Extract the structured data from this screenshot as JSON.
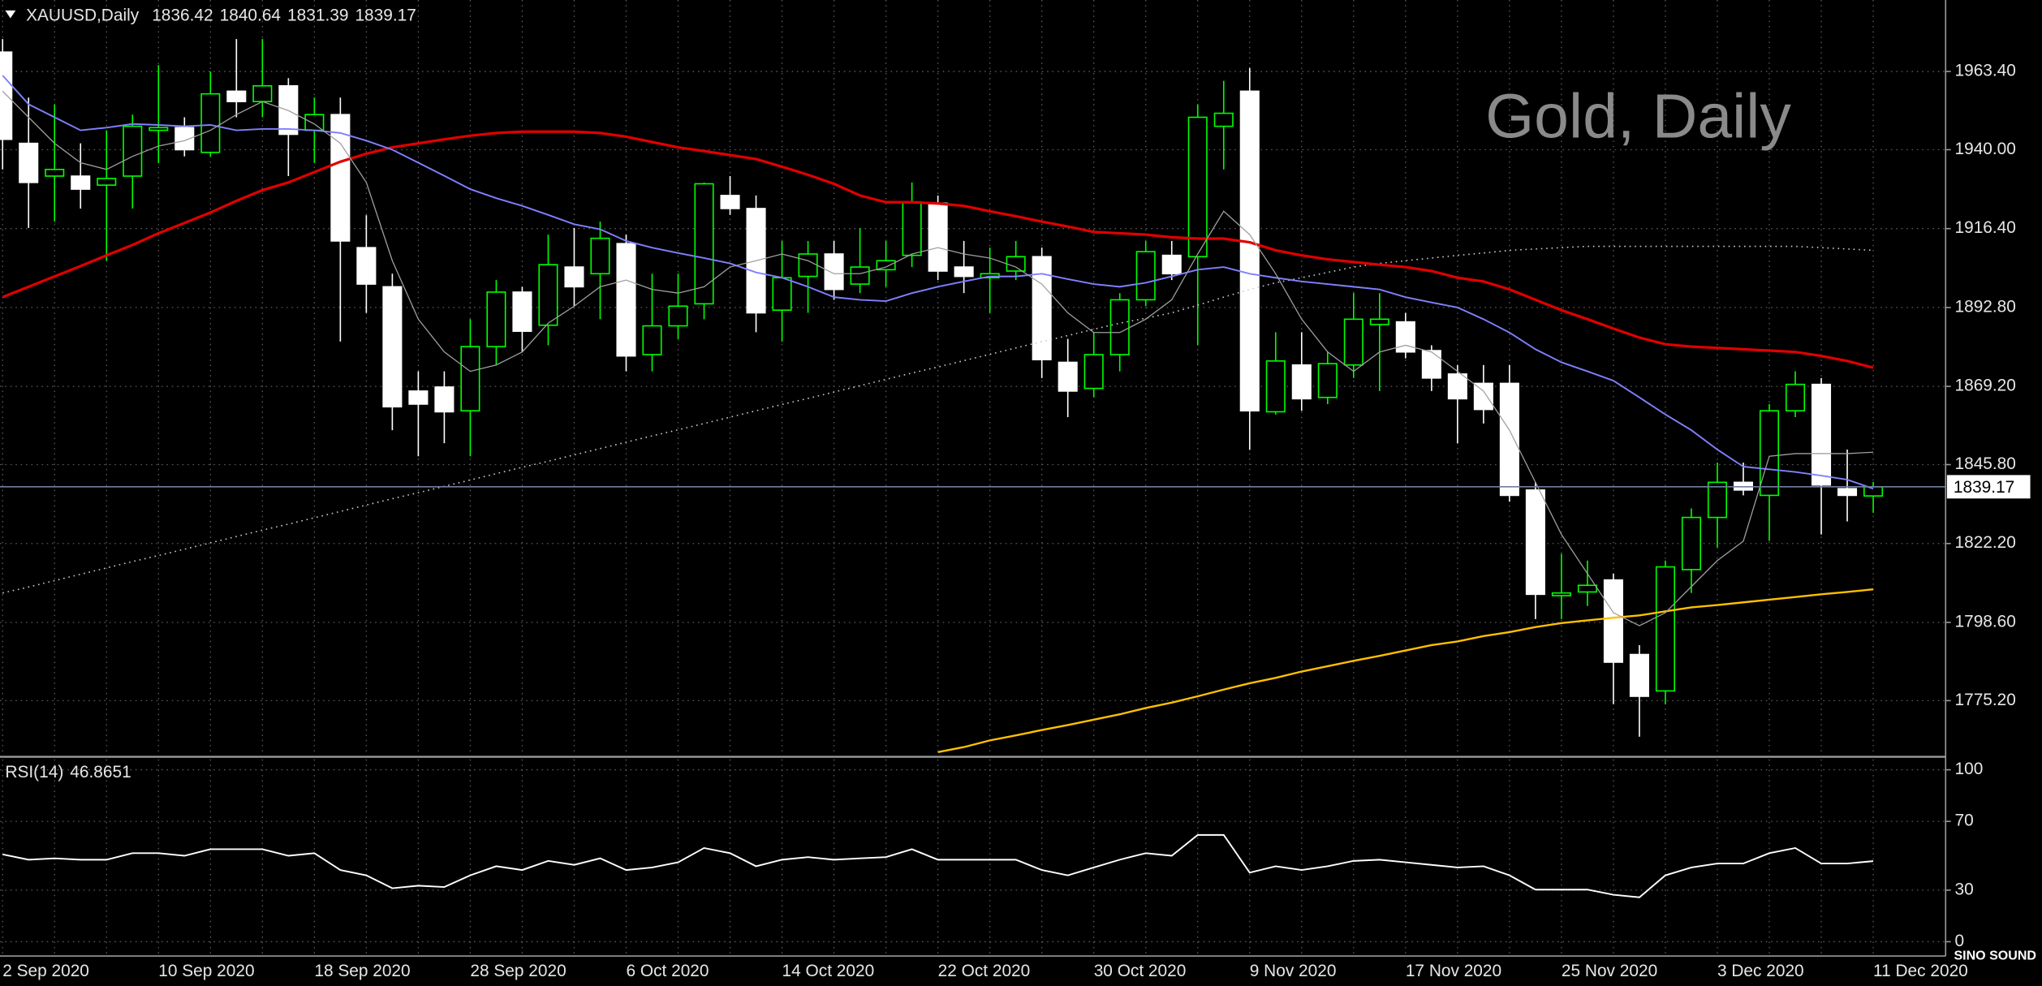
{
  "chart_data": [
    {
      "type": "candlestick",
      "title": "XAUUSD,Daily",
      "watermark": "Gold, Daily",
      "logo": "SINO SOUND",
      "categories": [
        "2 Sep 2020",
        null,
        null,
        null,
        null,
        null,
        "10 Sep 2020",
        null,
        null,
        null,
        null,
        null,
        "18 Sep 2020",
        null,
        null,
        null,
        null,
        null,
        "28 Sep 2020",
        null,
        null,
        null,
        null,
        null,
        "6 Oct 2020",
        null,
        null,
        null,
        null,
        null,
        "14 Oct 2020",
        null,
        null,
        null,
        null,
        null,
        "22 Oct 2020",
        null,
        null,
        null,
        null,
        null,
        "30 Oct 2020",
        null,
        null,
        null,
        null,
        null,
        "9 Nov 2020",
        null,
        null,
        null,
        null,
        null,
        "17 Nov 2020",
        null,
        null,
        null,
        null,
        null,
        "25 Nov 2020",
        null,
        null,
        null,
        null,
        null,
        "3 Dec 2020",
        null,
        null,
        null,
        null,
        null,
        "11 Dec 2020"
      ],
      "open": [
        1969.2,
        1941.9,
        1932.1,
        1932.1,
        1929.4,
        1932.1,
        1945.8,
        1946.6,
        1939.2,
        1957.5,
        1954.4,
        1959.1,
        1945.8,
        1950.5,
        1910.7,
        1899.0,
        1867.8,
        1869.0,
        1861.9,
        1881.1,
        1897.4,
        1887.5,
        1904.9,
        1902.9,
        1911.9,
        1878.7,
        1887.3,
        1893.9,
        1926.3,
        1922.4,
        1892.0,
        1902.1,
        1908.8,
        1899.8,
        1904.1,
        1908.4,
        1924.0,
        1904.9,
        1901.7,
        1903.7,
        1908.0,
        1876.4,
        1868.6,
        1878.7,
        1895.1,
        1908.4,
        1908.0,
        1947.0,
        1957.5,
        1861.6,
        1875.6,
        1865.9,
        1875.6,
        1887.7,
        1888.5,
        1879.9,
        1872.9,
        1870.1,
        1870.1,
        1838.2,
        1806.6,
        1807.7,
        1811.3,
        1789.0,
        1778.1,
        1814.4,
        1830.0,
        1840.5,
        1836.6,
        1861.9,
        1869.8,
        1838.6,
        1836.42
      ],
      "high": [
        1973.1,
        1955.6,
        1953.6,
        1941.9,
        1945.8,
        1950.5,
        1965.3,
        1949.7,
        1963.4,
        1973.1,
        1973.1,
        1961.4,
        1955.6,
        1955.6,
        1920.4,
        1902.9,
        1873.7,
        1873.7,
        1889.3,
        1901.0,
        1899.0,
        1914.6,
        1916.6,
        1918.5,
        1914.6,
        1902.9,
        1902.9,
        1930.2,
        1932.1,
        1926.3,
        1912.7,
        1912.7,
        1912.7,
        1916.6,
        1912.7,
        1930.2,
        1926.3,
        1912.7,
        1910.7,
        1912.7,
        1910.7,
        1883.4,
        1885.4,
        1897.1,
        1912.7,
        1912.7,
        1953.6,
        1960.6,
        1964.5,
        1885.4,
        1885.4,
        1879.5,
        1897.1,
        1897.1,
        1891.2,
        1881.5,
        1875.6,
        1875.6,
        1875.6,
        1840.5,
        1819.1,
        1817.1,
        1813.2,
        1791.8,
        1817.1,
        1832.7,
        1846.4,
        1846.4,
        1863.9,
        1873.7,
        1871.7,
        1850.3,
        1840.64
      ],
      "low": [
        1934.1,
        1916.6,
        1918.5,
        1922.4,
        1906.8,
        1922.4,
        1936.0,
        1938.0,
        1938.0,
        1949.7,
        1949.7,
        1932.1,
        1936.0,
        1882.6,
        1891.2,
        1856.1,
        1848.3,
        1852.2,
        1848.3,
        1875.6,
        1879.5,
        1881.5,
        1893.2,
        1889.3,
        1873.7,
        1873.7,
        1883.4,
        1889.3,
        1920.5,
        1885.4,
        1882.6,
        1891.2,
        1895.1,
        1897.1,
        1899.0,
        1904.9,
        1901.0,
        1897.1,
        1891.2,
        1901.0,
        1871.7,
        1860.0,
        1865.9,
        1873.7,
        1893.2,
        1901.0,
        1881.5,
        1934.1,
        1850.2,
        1860.8,
        1861.9,
        1863.9,
        1871.7,
        1867.8,
        1877.6,
        1867.8,
        1852.2,
        1858.1,
        1834.7,
        1799.6,
        1799.6,
        1803.5,
        1774.2,
        1764.4,
        1774.2,
        1807.4,
        1821.0,
        1836.6,
        1823.0,
        1860.0,
        1824.9,
        1828.8,
        1831.39
      ],
      "close": [
        1943.1,
        1930.2,
        1934.1,
        1928.2,
        1931.4,
        1947.0,
        1946.6,
        1940.0,
        1956.7,
        1954.4,
        1959.1,
        1944.6,
        1950.5,
        1912.7,
        1899.8,
        1863.1,
        1863.9,
        1861.6,
        1881.1,
        1897.4,
        1885.7,
        1905.6,
        1899.0,
        1913.5,
        1878.3,
        1887.3,
        1893.2,
        1929.8,
        1922.4,
        1891.2,
        1901.7,
        1908.8,
        1898.2,
        1904.9,
        1906.8,
        1924.4,
        1903.7,
        1902.1,
        1902.9,
        1908.0,
        1877.2,
        1867.8,
        1878.7,
        1895.1,
        1909.5,
        1902.9,
        1949.7,
        1950.9,
        1861.9,
        1876.8,
        1865.5,
        1876.0,
        1889.3,
        1889.3,
        1879.5,
        1871.7,
        1865.5,
        1862.3,
        1836.6,
        1807.0,
        1807.4,
        1809.7,
        1786.7,
        1776.5,
        1815.2,
        1830.0,
        1840.5,
        1838.2,
        1861.9,
        1869.8,
        1839.7,
        1836.6,
        1839.17
      ],
      "bull_color": "#00ff00",
      "bear_color": "#ffffff",
      "series": [
        {
          "color": "#cccccc",
          "style": "dotted",
          "values": [
            1807.4,
            1809.2,
            1811.1,
            1813.0,
            1814.9,
            1816.8,
            1818.6,
            1820.5,
            1822.4,
            1824.3,
            1826.2,
            1828.0,
            1829.9,
            1831.8,
            1833.7,
            1835.6,
            1837.4,
            1839.3,
            1841.2,
            1843.1,
            1845.0,
            1846.8,
            1848.7,
            1850.6,
            1852.5,
            1854.4,
            1856.2,
            1858.1,
            1860.0,
            1861.9,
            1863.8,
            1865.6,
            1867.5,
            1869.4,
            1871.3,
            1873.2,
            1875.0,
            1876.9,
            1878.8,
            1880.7,
            1882.6,
            1884.4,
            1886.3,
            1888.1,
            1889.6,
            1891.2,
            1893.5,
            1895.9,
            1898.2,
            1900.2,
            1901.7,
            1903.3,
            1904.9,
            1906.0,
            1906.8,
            1907.6,
            1908.4,
            1909.1,
            1909.9,
            1910.3,
            1910.7,
            1911.1,
            1911.1,
            1911.1,
            1911.1,
            1911.1,
            1911.1,
            1911.1,
            1911.1,
            1911.1,
            1910.7,
            1910.3,
            1909.9
          ]
        },
        {
          "color": "#ffc000",
          "style": "solid",
          "width": 1.5,
          "values": [
            null,
            null,
            null,
            null,
            null,
            null,
            null,
            null,
            null,
            null,
            null,
            null,
            null,
            null,
            null,
            null,
            null,
            null,
            null,
            null,
            null,
            null,
            null,
            null,
            null,
            null,
            null,
            null,
            null,
            null,
            null,
            null,
            null,
            null,
            null,
            null,
            1759.8,
            1761.3,
            1763.3,
            1764.8,
            1766.4,
            1767.9,
            1769.5,
            1771.1,
            1773.0,
            1774.6,
            1776.5,
            1778.5,
            1780.4,
            1782.0,
            1783.9,
            1785.5,
            1787.1,
            1788.6,
            1790.2,
            1791.8,
            1792.9,
            1794.5,
            1795.7,
            1797.2,
            1798.4,
            1799.2,
            1800.0,
            1800.7,
            1801.9,
            1803.1,
            1803.8,
            1804.6,
            1805.4,
            1806.2,
            1807.0,
            1807.7,
            1808.5
          ]
        },
        {
          "color": "#e00000",
          "style": "solid",
          "width": 2,
          "values": [
            1895.9,
            1899.0,
            1902.1,
            1905.2,
            1908.4,
            1911.5,
            1915.0,
            1918.1,
            1921.2,
            1924.7,
            1927.9,
            1930.2,
            1933.3,
            1936.4,
            1938.8,
            1940.7,
            1941.9,
            1943.1,
            1944.2,
            1945.0,
            1945.4,
            1945.4,
            1945.4,
            1945.0,
            1943.9,
            1942.3,
            1940.7,
            1939.6,
            1938.4,
            1937.2,
            1934.9,
            1932.5,
            1929.8,
            1926.3,
            1924.3,
            1924.3,
            1923.9,
            1923.2,
            1921.6,
            1920.1,
            1918.5,
            1917.0,
            1915.4,
            1915.0,
            1914.6,
            1913.8,
            1913.4,
            1913.4,
            1912.3,
            1909.9,
            1908.4,
            1907.2,
            1906.4,
            1905.6,
            1904.9,
            1903.7,
            1901.7,
            1900.6,
            1898.2,
            1895.1,
            1892.0,
            1889.3,
            1886.5,
            1883.8,
            1881.8,
            1881.1,
            1880.7,
            1880.3,
            1879.9,
            1879.5,
            1878.3,
            1876.8,
            1874.8
          ]
        },
        {
          "color": "#8080ff",
          "style": "solid",
          "width": 1.2,
          "values": [
            1962.2,
            1953.6,
            1949.7,
            1945.8,
            1946.6,
            1947.7,
            1947.4,
            1947.0,
            1947.4,
            1945.8,
            1946.2,
            1946.2,
            1945.8,
            1945.0,
            1942.7,
            1940.0,
            1936.1,
            1932.2,
            1928.2,
            1925.5,
            1923.2,
            1920.5,
            1917.7,
            1916.2,
            1912.7,
            1910.7,
            1909.1,
            1907.6,
            1906.0,
            1903.3,
            1901.7,
            1899.0,
            1895.9,
            1895.1,
            1894.7,
            1897.1,
            1899.0,
            1900.6,
            1902.1,
            1902.1,
            1902.9,
            1901.3,
            1899.8,
            1899.0,
            1900.2,
            1902.1,
            1904.1,
            1904.9,
            1902.9,
            1901.7,
            1900.6,
            1899.8,
            1899.0,
            1898.2,
            1895.9,
            1894.3,
            1892.8,
            1889.3,
            1885.3,
            1880.3,
            1876.4,
            1873.7,
            1870.9,
            1865.9,
            1860.8,
            1856.1,
            1850.3,
            1845.2,
            1844.4,
            1843.6,
            1842.5,
            1841.3,
            1838.6
          ]
        },
        {
          "color": "#a0a0a0",
          "style": "solid",
          "width": 0.8,
          "values": [
            1957.5,
            1949.7,
            1941.9,
            1936.1,
            1934.1,
            1938.0,
            1941.1,
            1942.7,
            1945.8,
            1950.5,
            1954.4,
            1951.7,
            1947.7,
            1941.9,
            1930.2,
            1906.8,
            1889.3,
            1879.5,
            1873.7,
            1875.6,
            1879.5,
            1888.1,
            1893.2,
            1899.0,
            1901.0,
            1898.2,
            1897.1,
            1899.0,
            1904.9,
            1906.8,
            1908.8,
            1906.8,
            1902.9,
            1902.9,
            1904.9,
            1908.8,
            1910.7,
            1908.8,
            1907.6,
            1904.9,
            1899.8,
            1891.2,
            1885.3,
            1885.3,
            1889.3,
            1895.1,
            1908.8,
            1921.6,
            1914.6,
            1902.9,
            1889.3,
            1879.5,
            1873.7,
            1879.5,
            1881.5,
            1879.5,
            1873.7,
            1867.8,
            1856.1,
            1840.5,
            1824.9,
            1813.2,
            1801.5,
            1797.6,
            1801.5,
            1809.3,
            1817.1,
            1822.9,
            1848.3,
            1849.1,
            1849.1,
            1849.1,
            1849.5
          ]
        }
      ],
      "ylim": [
        1758.8,
        1984.0
      ],
      "yticks": [
        {
          "value": 1775.2,
          "label": "1775.20"
        },
        {
          "value": 1798.6,
          "label": "1798.60"
        },
        {
          "value": 1822.2,
          "label": "1822.20"
        },
        {
          "value": 1845.8,
          "label": "1845.80"
        },
        {
          "value": 1869.2,
          "label": "1869.20"
        },
        {
          "value": 1892.8,
          "label": "1892.80"
        },
        {
          "value": 1916.4,
          "label": "1916.40"
        },
        {
          "value": 1940,
          "label": "1940.00"
        },
        {
          "value": 1963.4,
          "label": "1963.40"
        }
      ],
      "grid": true
    },
    {
      "type": "line",
      "title": "RSI(14)",
      "color": "#ffffff",
      "values": [
        50.8,
        47.7,
        48.5,
        47.7,
        47.7,
        51.5,
        51.5,
        50.0,
        53.8,
        53.8,
        53.8,
        50.0,
        51.5,
        41.7,
        38.6,
        31.1,
        32.6,
        31.8,
        38.6,
        43.9,
        41.7,
        47.0,
        44.7,
        48.5,
        41.7,
        43.2,
        46.2,
        54.5,
        51.5,
        43.9,
        47.7,
        49.2,
        47.7,
        48.5,
        49.2,
        53.8,
        47.7,
        47.7,
        47.7,
        47.7,
        41.7,
        38.6,
        43.2,
        47.7,
        51.5,
        50.0,
        62.1,
        62.1,
        40.2,
        43.9,
        41.7,
        43.9,
        47.0,
        47.7,
        46.2,
        44.7,
        43.2,
        43.9,
        38.6,
        30.3,
        30.3,
        30.3,
        27.3,
        25.8,
        38.6,
        43.2,
        45.5,
        45.5,
        51.5,
        54.5,
        45.5,
        45.5,
        46.8651
      ],
      "ylim": [
        0,
        100
      ],
      "yticks": [
        0,
        30,
        70,
        100
      ],
      "grid": true
    }
  ]
}
